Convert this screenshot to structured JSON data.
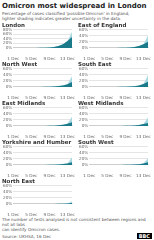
{
  "title": "Omicron most widespread in London",
  "subtitle": "Percentage of cases classified 'possible Omicron' in England,\nlighter shading indicates greater uncertainty in the data.",
  "annotations": [
    "The number of tests analysed is not consistent between regions and not all labs\ncan identify Omicron cases.",
    "Source: UKHSA, 16 Dec",
    "BBC"
  ],
  "chart_data": [
    {
      "type": "area",
      "title": "London",
      "categories": [
        "1 Dec",
        null,
        null,
        null,
        "5 Dec",
        null,
        null,
        null,
        "9 Dec",
        null,
        null,
        null,
        "13 Dec",
        null
      ],
      "series": [
        {
          "color": "#a8d8e0",
          "values": [
            0,
            0,
            0,
            0,
            0,
            0,
            0.5,
            1,
            2,
            4,
            8,
            16,
            30,
            70
          ]
        },
        {
          "color": "#1a7a8a",
          "values": [
            0,
            0,
            0,
            0,
            0,
            0,
            0.5,
            1,
            2,
            4,
            8,
            16,
            30,
            48
          ]
        }
      ],
      "ylim": [
        0,
        80
      ],
      "yticks": [
        {
          "value": 0,
          "label": "0%"
        },
        {
          "value": 20,
          "label": "20%"
        },
        {
          "value": 40,
          "label": "40%"
        },
        {
          "value": 60,
          "label": "60%"
        },
        {
          "value": 80,
          "label": "80%"
        }
      ],
      "grid": true
    },
    {
      "type": "area",
      "title": "East of England",
      "categories": [
        "1 Dec",
        null,
        null,
        null,
        "5 Dec",
        null,
        null,
        null,
        "9 Dec",
        null,
        null,
        null,
        "13 Dec",
        null
      ],
      "series": [
        {
          "color": "#a8d8e0",
          "values": [
            0,
            0,
            0,
            0,
            0,
            0,
            0.2,
            0.4,
            0.8,
            1.5,
            3,
            6,
            12,
            40
          ]
        },
        {
          "color": "#1a7a8a",
          "values": [
            0,
            0,
            0,
            0,
            0,
            0,
            0.2,
            0.4,
            0.8,
            1.5,
            3,
            6,
            12,
            20
          ]
        }
      ],
      "ylim": [
        0,
        60
      ],
      "yticks": [
        {
          "value": 0,
          "label": "0%"
        },
        {
          "value": 20,
          "label": "20%"
        },
        {
          "value": 40,
          "label": "40%"
        },
        {
          "value": 60,
          "label": "60%"
        }
      ],
      "grid": true
    },
    {
      "type": "area",
      "title": "North West",
      "categories": [
        "1 Dec",
        null,
        null,
        null,
        "5 Dec",
        null,
        null,
        null,
        "9 Dec",
        null,
        null,
        null,
        "13 Dec",
        null
      ],
      "series": [
        {
          "color": "#a8d8e0",
          "values": [
            0,
            0,
            0,
            0,
            0,
            0,
            0.2,
            0.4,
            0.8,
            1.5,
            3,
            5,
            9,
            35
          ]
        },
        {
          "color": "#1a7a8a",
          "values": [
            0,
            0,
            0,
            0,
            0,
            0,
            0.2,
            0.4,
            0.8,
            1.5,
            3,
            5,
            9,
            16
          ]
        }
      ],
      "ylim": [
        0,
        60
      ],
      "yticks": [
        {
          "value": 0,
          "label": "0%"
        },
        {
          "value": 20,
          "label": "20%"
        },
        {
          "value": 40,
          "label": "40%"
        },
        {
          "value": 60,
          "label": "60%"
        }
      ],
      "grid": true
    },
    {
      "type": "area",
      "title": "South East",
      "categories": [
        "1 Dec",
        null,
        null,
        null,
        "5 Dec",
        null,
        null,
        null,
        "9 Dec",
        null,
        null,
        null,
        "13 Dec",
        null
      ],
      "series": [
        {
          "color": "#a8d8e0",
          "values": [
            0,
            0,
            0,
            0,
            0,
            0,
            0.1,
            0.3,
            0.6,
            1.2,
            2.5,
            5,
            10,
            38
          ]
        },
        {
          "color": "#1a7a8a",
          "values": [
            0,
            0,
            0,
            0,
            0,
            0,
            0.1,
            0.3,
            0.6,
            1.2,
            2.5,
            5,
            10,
            17
          ]
        }
      ],
      "ylim": [
        0,
        60
      ],
      "yticks": [
        {
          "value": 0,
          "label": "0%"
        },
        {
          "value": 20,
          "label": "20%"
        },
        {
          "value": 40,
          "label": "40%"
        },
        {
          "value": 60,
          "label": "60%"
        }
      ],
      "grid": true
    },
    {
      "type": "area",
      "title": "East Midlands",
      "categories": [
        "1 Dec",
        null,
        null,
        null,
        "5 Dec",
        null,
        null,
        null,
        "9 Dec",
        null,
        null,
        null,
        "13 Dec",
        null
      ],
      "series": [
        {
          "color": "#a8d8e0",
          "values": [
            0,
            0,
            0,
            0,
            0,
            0,
            0.1,
            0.2,
            0.5,
            1,
            2,
            4,
            7,
            30
          ]
        },
        {
          "color": "#1a7a8a",
          "values": [
            0,
            0,
            0,
            0,
            0,
            0,
            0.1,
            0.2,
            0.5,
            1,
            2,
            4,
            7,
            12
          ]
        }
      ],
      "ylim": [
        0,
        60
      ],
      "yticks": [
        {
          "value": 0,
          "label": "0%"
        },
        {
          "value": 20,
          "label": "20%"
        },
        {
          "value": 40,
          "label": "40%"
        },
        {
          "value": 60,
          "label": "60%"
        }
      ],
      "grid": true
    },
    {
      "type": "area",
      "title": "West Midlands",
      "categories": [
        "1 Dec",
        null,
        null,
        null,
        "5 Dec",
        null,
        null,
        null,
        "9 Dec",
        null,
        null,
        null,
        "13 Dec",
        null
      ],
      "series": [
        {
          "color": "#a8d8e0",
          "values": [
            0,
            0,
            0,
            0,
            0,
            0,
            0.1,
            0.2,
            0.4,
            0.8,
            1.5,
            3,
            6,
            28
          ]
        },
        {
          "color": "#1a7a8a",
          "values": [
            0,
            0,
            0,
            0,
            0,
            0,
            0.1,
            0.2,
            0.4,
            0.8,
            1.5,
            3,
            6,
            10
          ]
        }
      ],
      "ylim": [
        0,
        60
      ],
      "yticks": [
        {
          "value": 0,
          "label": "0%"
        },
        {
          "value": 20,
          "label": "20%"
        },
        {
          "value": 40,
          "label": "40%"
        },
        {
          "value": 60,
          "label": "60%"
        }
      ],
      "grid": true
    },
    {
      "type": "area",
      "title": "Yorkshire and Humber",
      "categories": [
        "1 Dec",
        null,
        null,
        null,
        "5 Dec",
        null,
        null,
        null,
        "9 Dec",
        null,
        null,
        null,
        "13 Dec",
        null
      ],
      "series": [
        {
          "color": "#a8d8e0",
          "values": [
            0,
            0,
            0,
            0,
            0,
            0,
            0.1,
            0.2,
            0.4,
            0.8,
            1.5,
            3,
            5,
            25
          ]
        },
        {
          "color": "#1a7a8a",
          "values": [
            0,
            0,
            0,
            0,
            0,
            0,
            0.1,
            0.2,
            0.4,
            0.8,
            1.5,
            3,
            5,
            9
          ]
        }
      ],
      "ylim": [
        0,
        60
      ],
      "yticks": [
        {
          "value": 0,
          "label": "0%"
        },
        {
          "value": 20,
          "label": "20%"
        },
        {
          "value": 40,
          "label": "40%"
        },
        {
          "value": 60,
          "label": "60%"
        }
      ],
      "grid": true
    },
    {
      "type": "area",
      "title": "South West",
      "categories": [
        "1 Dec",
        null,
        null,
        null,
        "5 Dec",
        null,
        null,
        null,
        "9 Dec",
        null,
        null,
        null,
        "13 Dec",
        null
      ],
      "series": [
        {
          "color": "#a8d8e0",
          "values": [
            0,
            0,
            0,
            0,
            0,
            0,
            0.05,
            0.1,
            0.3,
            0.6,
            1.2,
            2.5,
            5,
            22
          ]
        },
        {
          "color": "#1a7a8a",
          "values": [
            0,
            0,
            0,
            0,
            0,
            0,
            0.05,
            0.1,
            0.3,
            0.6,
            1.2,
            2.5,
            5,
            9
          ]
        }
      ],
      "ylim": [
        0,
        60
      ],
      "yticks": [
        {
          "value": 0,
          "label": "0%"
        },
        {
          "value": 20,
          "label": "20%"
        },
        {
          "value": 40,
          "label": "40%"
        },
        {
          "value": 60,
          "label": "60%"
        }
      ],
      "grid": true
    },
    {
      "type": "area",
      "title": "North East",
      "categories": [
        "1 Dec",
        null,
        null,
        null,
        "5 Dec",
        null,
        null,
        null,
        "9 Dec",
        null,
        null,
        null,
        "13 Dec",
        null
      ],
      "series": [
        {
          "color": "#a8d8e0",
          "values": [
            0,
            0,
            0,
            0,
            0,
            0,
            0.02,
            0.05,
            0.1,
            0.2,
            0.4,
            0.8,
            1.5,
            8
          ]
        },
        {
          "color": "#1a7a8a",
          "values": [
            0,
            0,
            0,
            0,
            0,
            0,
            0.02,
            0.05,
            0.1,
            0.2,
            0.4,
            0.8,
            1.5,
            3
          ]
        }
      ],
      "ylim": [
        0,
        60
      ],
      "yticks": [
        {
          "value": 0,
          "label": "0%"
        },
        {
          "value": 20,
          "label": "20%"
        },
        {
          "value": 40,
          "label": "40%"
        },
        {
          "value": 60,
          "label": "60%"
        }
      ],
      "grid": true
    }
  ]
}
